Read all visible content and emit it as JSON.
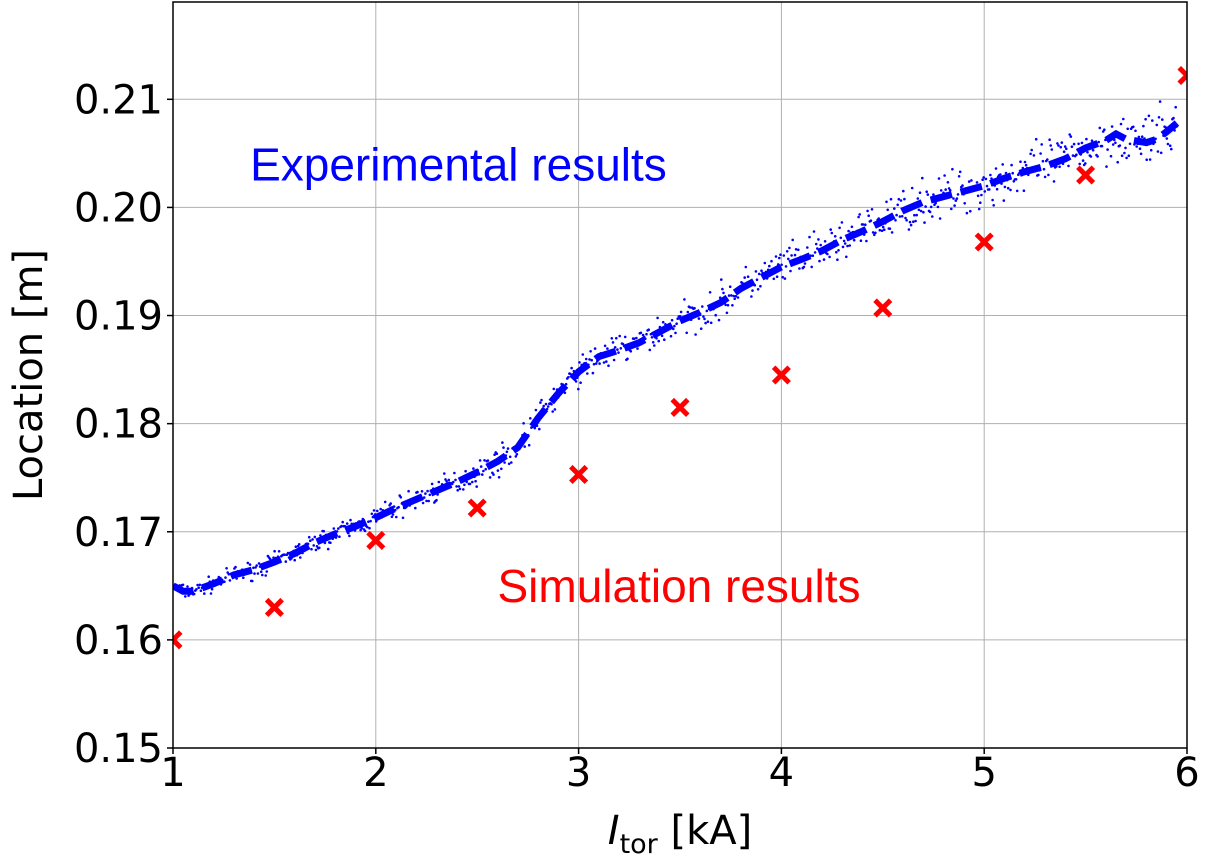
{
  "chart_data": {
    "type": "scatter",
    "xlabel_main": "I",
    "xlabel_sub": "tor",
    "xlabel_unit": " [kA]",
    "ylabel": "Location [m]",
    "xlim": [
      1,
      6
    ],
    "ylim": [
      0.15,
      0.219
    ],
    "x_ticks": [
      1,
      2,
      3,
      4,
      5,
      6
    ],
    "x_tick_labels": [
      "1",
      "2",
      "3",
      "4",
      "5",
      "6"
    ],
    "y_ticks": [
      0.15,
      0.16,
      0.17,
      0.18,
      0.19,
      0.2,
      0.21
    ],
    "y_tick_labels": [
      "0.15",
      "0.16",
      "0.17",
      "0.18",
      "0.19",
      "0.20",
      "0.21"
    ],
    "grid": true,
    "colors": {
      "experimental": "#0000ff",
      "simulation": "#ff0000",
      "grid": "#b0b0b0"
    },
    "annotations": [
      {
        "text": "Experimental results",
        "color": "#0000ff",
        "x": 1.38,
        "y": 0.2025
      },
      {
        "text": "Simulation results",
        "color": "#ff0000",
        "x": 2.6,
        "y": 0.1635
      }
    ],
    "series": [
      {
        "style": "dashed-line",
        "x": [
          1.0,
          1.05,
          1.1,
          1.2,
          1.3,
          1.4,
          1.5,
          1.6,
          1.7,
          1.8,
          1.9,
          2.0,
          2.1,
          2.2,
          2.3,
          2.4,
          2.5,
          2.6,
          2.7,
          2.8,
          2.9,
          3.0,
          3.1,
          3.2,
          3.3,
          3.4,
          3.5,
          3.6,
          3.7,
          3.8,
          3.9,
          4.0,
          4.1,
          4.2,
          4.3,
          4.4,
          4.5,
          4.6,
          4.7,
          4.8,
          4.9,
          5.0,
          5.1,
          5.2,
          5.3,
          5.4,
          5.5,
          5.6,
          5.65,
          5.7,
          5.8,
          5.85,
          5.9,
          5.95
        ],
        "y": [
          0.165,
          0.1645,
          0.1645,
          0.1652,
          0.166,
          0.1665,
          0.1672,
          0.168,
          0.169,
          0.1698,
          0.1705,
          0.1713,
          0.1722,
          0.173,
          0.1738,
          0.1746,
          0.1755,
          0.1765,
          0.1778,
          0.1805,
          0.1828,
          0.1848,
          0.1862,
          0.1868,
          0.1875,
          0.1885,
          0.1895,
          0.1903,
          0.1912,
          0.1925,
          0.1935,
          0.1945,
          0.1952,
          0.196,
          0.197,
          0.1978,
          0.1987,
          0.1997,
          0.2005,
          0.201,
          0.2015,
          0.202,
          0.2027,
          0.2033,
          0.2038,
          0.2045,
          0.2055,
          0.2062,
          0.2068,
          0.2063,
          0.206,
          0.2063,
          0.207,
          0.2078
        ]
      },
      {
        "style": "x-marker",
        "x": [
          1.0,
          1.5,
          2.0,
          2.5,
          3.0,
          3.5,
          4.0,
          4.5,
          5.0,
          5.5,
          6.0
        ],
        "y": [
          0.16,
          0.163,
          0.1692,
          0.1722,
          0.1753,
          0.1815,
          0.1845,
          0.1907,
          0.1968,
          0.203,
          0.2122
        ]
      }
    ]
  }
}
